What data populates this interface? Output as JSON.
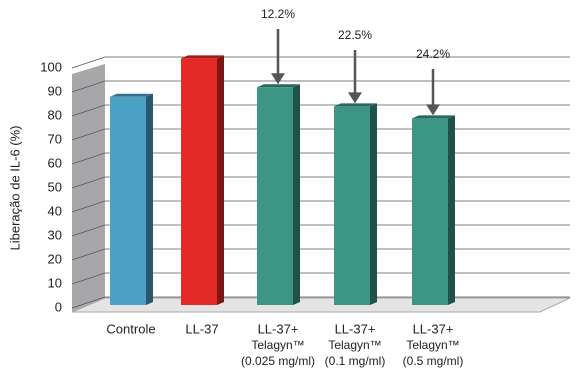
{
  "chart_data": {
    "type": "bar3d",
    "y_label": "Liberação de IL-6 (%)",
    "categories": [
      [
        "Controle"
      ],
      [
        "LL-37"
      ],
      [
        "LL-37+",
        "Telagyn™",
        "(0.025 mg/ml)"
      ],
      [
        "LL-37+",
        "Telagyn™",
        "(0.1 mg/ml)"
      ],
      [
        "LL-37+",
        "Telagyn™",
        "(0.5 mg/ml)"
      ]
    ],
    "values": [
      88,
      104,
      92,
      84,
      79
    ],
    "colors": [
      "#4ba0c6",
      "#e42a26",
      "#3c9585",
      "#3c9585",
      "#3c9585"
    ],
    "ylim": [
      0,
      100
    ],
    "yticks": [
      0,
      10,
      20,
      30,
      40,
      50,
      60,
      70,
      80,
      90,
      100
    ],
    "grid": true,
    "annotations": [
      {
        "category": 2,
        "text": "12.2%"
      },
      {
        "category": 3,
        "text": "22.5%"
      },
      {
        "category": 4,
        "text": "24.2%"
      }
    ]
  }
}
